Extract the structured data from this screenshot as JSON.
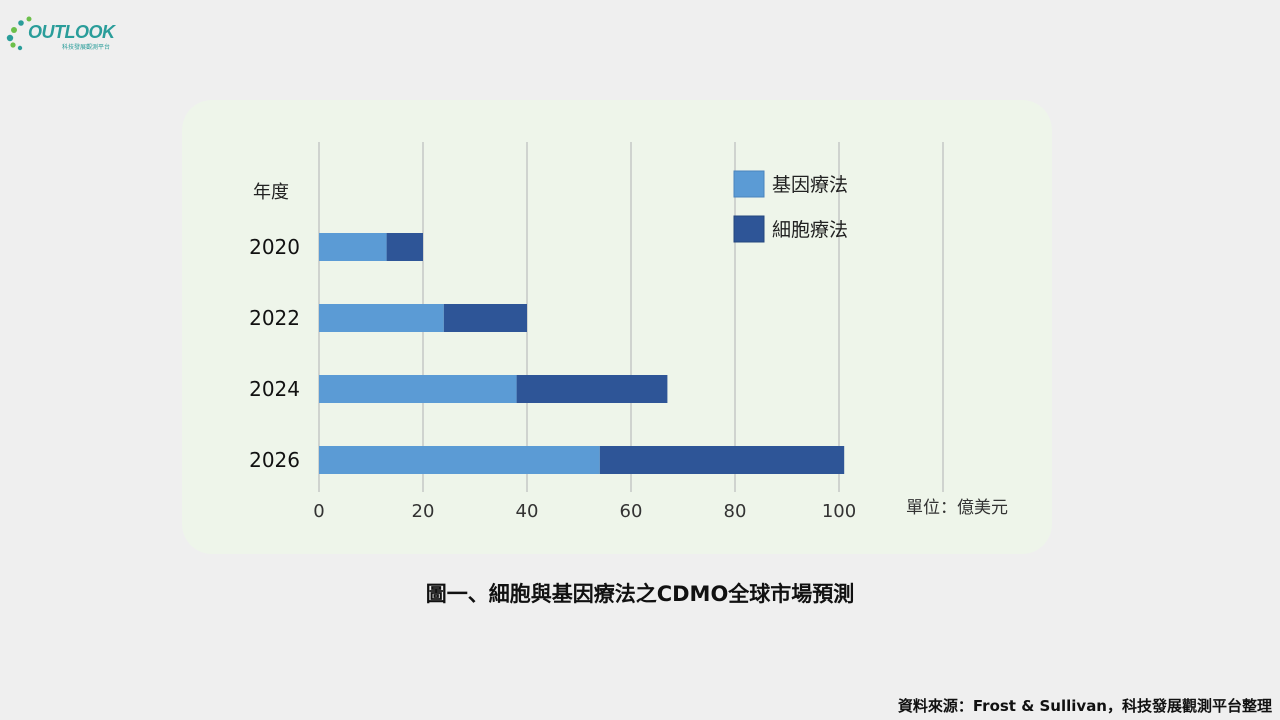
{
  "logo": {
    "word": "OUTLOOK",
    "tagline": "科技發展觀測平台"
  },
  "caption": "圖一、細胞與基因療法之CDMO全球市場預測",
  "source": "資料來源：Frost & Sullivan，科技發展觀測平台整理",
  "colors": {
    "gene": "#5b9bd5",
    "cell": "#2e5597",
    "panel": "#eef5ea"
  },
  "chart_data": {
    "type": "bar",
    "orientation": "horizontal",
    "stacked": true,
    "categories": [
      "2020",
      "2022",
      "2024",
      "2026"
    ],
    "series": [
      {
        "name": "基因療法",
        "values": [
          13,
          24,
          38,
          54
        ]
      },
      {
        "name": "細胞療法",
        "values": [
          7,
          16,
          29,
          47
        ]
      }
    ],
    "category_axis_label": "年度",
    "unit_label": "單位：億美元",
    "xlim": [
      0,
      120
    ],
    "xticks": [
      0,
      20,
      40,
      60,
      80,
      100
    ],
    "grid": true,
    "legend": "top-right"
  }
}
